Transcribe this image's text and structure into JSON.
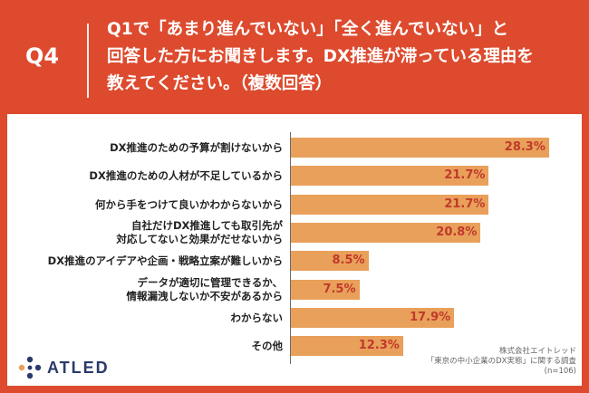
{
  "header": {
    "qnum": "Q4",
    "question_lines": [
      "Q1で「あまり進んでいない」「全く進んでいない」と",
      "回答した方にお聞きします。DX推進が滞っている理由を",
      "教えてください。（複数回答）"
    ]
  },
  "chart_data": {
    "type": "bar",
    "orientation": "horizontal",
    "categories": [
      [
        "DX推進のための予算が割けないから"
      ],
      [
        "DX推進のための人材が不足しているから"
      ],
      [
        "何から手をつけて良いかわからないから"
      ],
      [
        "自社だけDX推進しても取引先が",
        "対応してないと効果がだせないから"
      ],
      [
        "DX推進のアイデアや企画・戦略立案が難しいから"
      ],
      [
        "データが適切に管理できるか、",
        "情報漏洩しないか不安があるから"
      ],
      [
        "わからない"
      ],
      [
        "その他"
      ]
    ],
    "values": [
      28.3,
      21.7,
      21.7,
      20.8,
      8.5,
      7.5,
      17.9,
      12.3
    ],
    "value_labels": [
      "28.3%",
      "21.7%",
      "21.7%",
      "20.8%",
      "8.5%",
      "7.5%",
      "17.9%",
      "12.3%"
    ],
    "xlim": [
      0,
      30
    ],
    "bar_color": "#e9a05a",
    "label_color": "#c0392b"
  },
  "brand": {
    "logo_text": "ATLED",
    "color": "#2a3a6b"
  },
  "source_lines": [
    "株式会社エイトレッド",
    "「東京の中小企業のDX実態」に関する調査",
    "(n=106)"
  ],
  "colors": {
    "frame": "#dd4a2e",
    "accent": "#e9a05a"
  }
}
